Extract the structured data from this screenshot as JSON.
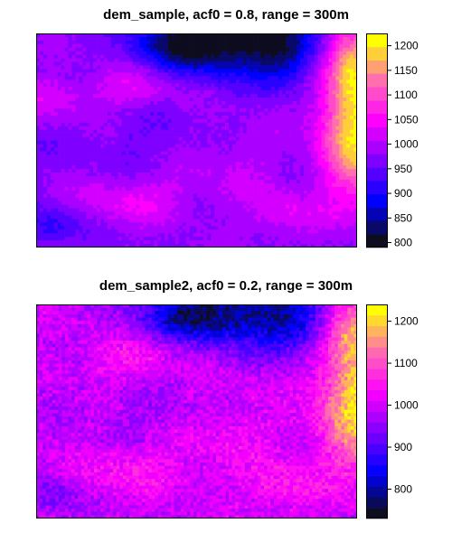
{
  "chart_data": [
    {
      "type": "heatmap",
      "title": "dem_sample, acf0 = 0.8, range = 300m",
      "colorbar": {
        "min": 790,
        "max": 1225,
        "ticks": [
          800,
          850,
          900,
          950,
          1000,
          1050,
          1100,
          1150,
          1200
        ],
        "tick_labels": [
          "800",
          "850",
          "900",
          "950",
          "1000",
          "1050",
          "1100",
          "1150",
          "1200"
        ],
        "bins": 16
      },
      "grid": {
        "cols": 90,
        "rows": 60,
        "noise": 10,
        "seed": 11
      },
      "field_description": "elevation surface: low (~850-900) at top center, high (~1150-1200) at right edge, ~960-990 across center band",
      "features": [
        {
          "cx": 0.62,
          "cy": 0.03,
          "sx": 0.16,
          "sy": 0.12,
          "amp": -170
        },
        {
          "cx": 0.44,
          "cy": 0.05,
          "sx": 0.1,
          "sy": 0.08,
          "amp": -90
        },
        {
          "cx": 0.78,
          "cy": 0.1,
          "sx": 0.06,
          "sy": 0.1,
          "amp": -70
        },
        {
          "cx": 1.0,
          "cy": 0.45,
          "sx": 0.08,
          "sy": 0.22,
          "amp": 230
        },
        {
          "cx": 0.98,
          "cy": 0.12,
          "sx": 0.05,
          "sy": 0.12,
          "amp": 150
        },
        {
          "cx": 0.3,
          "cy": 0.25,
          "sx": 0.1,
          "sy": 0.07,
          "amp": 55
        },
        {
          "cx": 0.05,
          "cy": 0.3,
          "sx": 0.08,
          "sy": 0.08,
          "amp": 45
        },
        {
          "cx": 0.3,
          "cy": 0.78,
          "sx": 0.12,
          "sy": 0.08,
          "amp": 60
        },
        {
          "cx": 0.78,
          "cy": 0.85,
          "sx": 0.08,
          "sy": 0.08,
          "amp": 55
        },
        {
          "cx": 0.6,
          "cy": 0.6,
          "sx": 0.12,
          "sy": 0.15,
          "amp": 35
        },
        {
          "cx": 0.05,
          "cy": 0.9,
          "sx": 0.06,
          "sy": 0.06,
          "amp": -60
        },
        {
          "cx": 0.4,
          "cy": 0.5,
          "sx": 0.18,
          "sy": 0.1,
          "amp": -20
        }
      ],
      "base": 975
    },
    {
      "type": "heatmap",
      "title": "dem_sample2, acf0 = 0.2, range = 300m",
      "colorbar": {
        "min": 730,
        "max": 1240,
        "ticks": [
          800,
          900,
          1000,
          1100,
          1200
        ],
        "tick_labels": [
          "800",
          "900",
          "1000",
          "1100",
          "1200"
        ],
        "bins": 20
      },
      "grid": {
        "cols": 100,
        "rows": 65,
        "noise": 35,
        "seed": 29
      },
      "field_description": "noisier version of the same surface: low (~850) at top center, high (~1150-1200) at right edge",
      "features": [
        {
          "cx": 0.64,
          "cy": 0.03,
          "sx": 0.17,
          "sy": 0.12,
          "amp": -190
        },
        {
          "cx": 0.46,
          "cy": 0.05,
          "sx": 0.1,
          "sy": 0.08,
          "amp": -100
        },
        {
          "cx": 0.8,
          "cy": 0.12,
          "sx": 0.06,
          "sy": 0.1,
          "amp": -80
        },
        {
          "cx": 1.0,
          "cy": 0.45,
          "sx": 0.08,
          "sy": 0.22,
          "amp": 220
        },
        {
          "cx": 0.98,
          "cy": 0.1,
          "sx": 0.05,
          "sy": 0.1,
          "amp": 140
        },
        {
          "cx": 0.3,
          "cy": 0.25,
          "sx": 0.1,
          "sy": 0.07,
          "amp": 60
        },
        {
          "cx": 0.3,
          "cy": 0.78,
          "sx": 0.12,
          "sy": 0.08,
          "amp": 55
        },
        {
          "cx": 0.78,
          "cy": 0.85,
          "sx": 0.08,
          "sy": 0.08,
          "amp": 60
        },
        {
          "cx": 0.6,
          "cy": 0.6,
          "sx": 0.12,
          "sy": 0.15,
          "amp": 40
        },
        {
          "cx": 0.05,
          "cy": 0.9,
          "sx": 0.06,
          "sy": 0.06,
          "amp": -55
        },
        {
          "cx": 0.4,
          "cy": 0.5,
          "sx": 0.18,
          "sy": 0.1,
          "amp": -25
        }
      ],
      "base": 990
    }
  ],
  "colormap_stops": [
    "#0d0d1f",
    "#0000ff",
    "#7f00ff",
    "#ff00ff",
    "#ff6fae",
    "#ffff00"
  ],
  "colormap_name": "topo-like (dark navy → blue → purple → magenta → pink → yellow)"
}
